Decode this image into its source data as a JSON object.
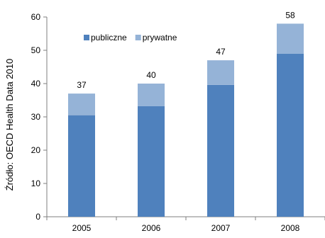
{
  "top_cut_text": "",
  "chart_data": {
    "type": "bar",
    "stacked": true,
    "categories": [
      "2005",
      "2006",
      "2007",
      "2008"
    ],
    "series": [
      {
        "name": "publiczne",
        "values": [
          30.5,
          33.2,
          39.6,
          49.0
        ],
        "color": "#4F81BD"
      },
      {
        "name": "prywatne",
        "values": [
          6.5,
          6.8,
          7.4,
          9.0
        ],
        "color": "#95B3D7"
      }
    ],
    "totals": [
      "37",
      "40",
      "47",
      "58"
    ],
    "ylim": [
      0,
      60
    ],
    "yticks": [
      0,
      10,
      20,
      30,
      40,
      50,
      60
    ],
    "ylabel": "Źródło: OECD Health Data 2010",
    "xlabel": "",
    "title": "",
    "legend_position": "top-left inside plot",
    "grid": false
  }
}
